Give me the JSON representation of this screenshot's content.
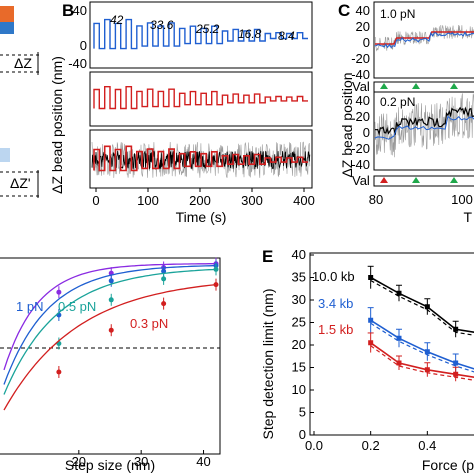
{
  "panels": {
    "B": {
      "letter": "B",
      "xlabel": "Time (s)",
      "ylabel": "ΔZ bead position (nm)",
      "x_ticks": [
        "0",
        "100",
        "200",
        "300",
        "400"
      ],
      "top_y_ticks": [
        "40",
        "20",
        "0",
        "-20",
        "-40"
      ],
      "step_labels": [
        "42",
        "33.6",
        "25.2",
        "16.8",
        "8.4"
      ]
    },
    "C": {
      "letter": "C",
      "ylabel": "ΔZ bead position",
      "y_ticks_top": [
        "40",
        "20",
        "0",
        "-20",
        "-40"
      ],
      "y_ticks_bottom": [
        "40",
        "20",
        "0",
        "-20",
        "-40"
      ],
      "force_top": "1.0 pN",
      "force_bottom": "0.2 pN",
      "val_label": "Val",
      "x_ticks": [
        "80",
        "100"
      ],
      "xlabel_partial": "T"
    },
    "D": {
      "xlabel": "Step size (nm)",
      "x_ticks": [
        "20",
        "30",
        "40"
      ],
      "labels": [
        "1 pN",
        "0.5 pN",
        "0.3 pN"
      ]
    },
    "E": {
      "letter": "E",
      "ylabel": "Step detection limit (nm)",
      "xlabel": "Force (p",
      "x_ticks": [
        "0.0",
        "0.2",
        "0.4"
      ],
      "y_ticks": [
        "40",
        "35",
        "30",
        "25",
        "20",
        "15",
        "10",
        "5",
        "0"
      ],
      "labels": [
        "10.0 kb",
        "3.4 kb",
        "1.5 kb"
      ]
    }
  },
  "colors": {
    "blue": "#1f5fd1",
    "red": "#d21f1f",
    "black": "#000000",
    "gray": "#9a9a9a",
    "purple": "#8a2be2",
    "teal": "#1aa39a",
    "green": "#1fa84a",
    "cyan": "#1fbcd1"
  },
  "chart_data": [
    {
      "panel": "B",
      "type": "line",
      "xlabel": "Time (s)",
      "ylabel": "ΔZ bead position (nm)",
      "xlim": [
        0,
        410
      ],
      "ylim": [
        -40,
        40
      ],
      "series": [
        {
          "step_sizes": [
            42,
            33.6,
            25.2,
            16.8,
            8.4
          ],
          "color": "blue"
        },
        {
          "step_sizes": [
            42,
            33.6,
            25.2,
            16.8,
            8.4
          ],
          "color": "red"
        },
        {
          "step_sizes": [
            42,
            33.6,
            25.2,
            16.8,
            8.4
          ],
          "color": "red",
          "noisy_trace": "gray"
        }
      ]
    },
    {
      "panel": "D",
      "type": "line",
      "xlabel": "Step size (nm)",
      "xlim": [
        8,
        42
      ],
      "series": [
        {
          "name": "1 pN",
          "color": "purple",
          "x": [
            16.8,
            25.2,
            33.6,
            42
          ],
          "y": [
            0.82,
            0.92,
            0.95,
            0.97
          ]
        },
        {
          "name": "",
          "color": "blue",
          "x": [
            16.8,
            25.2,
            33.6,
            42
          ],
          "y": [
            0.7,
            0.88,
            0.93,
            0.96
          ]
        },
        {
          "name": "0.5 pN",
          "color": "teal",
          "x": [
            16.8,
            25.2,
            33.6,
            42
          ],
          "y": [
            0.55,
            0.78,
            0.89,
            0.94
          ]
        },
        {
          "name": "0.3 pN",
          "color": "red",
          "x": [
            16.8,
            25.2,
            33.6,
            42
          ],
          "y": [
            0.4,
            0.62,
            0.76,
            0.86
          ]
        }
      ]
    },
    {
      "panel": "E",
      "type": "line",
      "xlabel": "Force (p",
      "ylabel": "Step detection limit (nm)",
      "xlim": [
        0,
        0.6
      ],
      "ylim": [
        0,
        40
      ],
      "series": [
        {
          "name": "10.0 kb",
          "color": "black",
          "x": [
            0.2,
            0.3,
            0.4,
            0.5,
            0.6
          ],
          "y": [
            35,
            31.5,
            28.5,
            23.5,
            22.5
          ]
        },
        {
          "name": "3.4 kb",
          "color": "blue",
          "x": [
            0.2,
            0.3,
            0.4,
            0.5,
            0.6
          ],
          "y": [
            25.5,
            21.5,
            18.5,
            16,
            14
          ]
        },
        {
          "name": "1.5 kb",
          "color": "red",
          "x": [
            0.2,
            0.3,
            0.4,
            0.5,
            0.6
          ],
          "y": [
            20.5,
            16,
            14.5,
            13.5,
            12.5
          ]
        }
      ]
    }
  ]
}
